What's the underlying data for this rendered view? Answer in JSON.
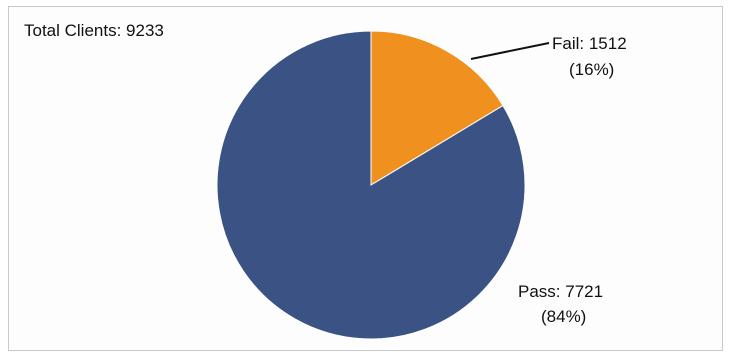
{
  "chart_data": {
    "type": "pie",
    "title": "Total Clients: 9233",
    "slices": [
      {
        "label": "Fail: 1512",
        "percent_label": "(16%)",
        "value": 1512,
        "color": "#F0901E"
      },
      {
        "label": "Pass: 7721",
        "percent_label": "(84%)",
        "value": 7721,
        "color": "#3A5384"
      }
    ],
    "legend": "none"
  }
}
